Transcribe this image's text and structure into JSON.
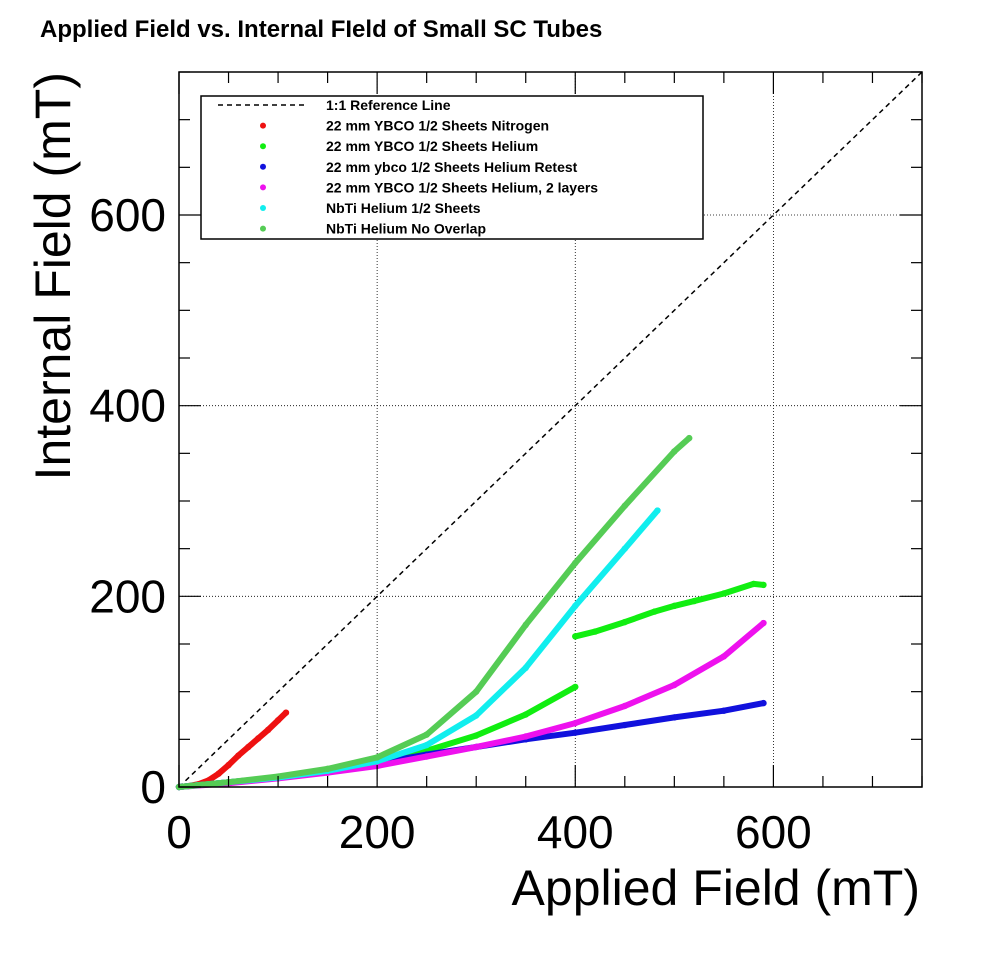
{
  "chart_data": {
    "type": "scatter",
    "title": "Applied Field vs. Internal FIeld of Small SC Tubes",
    "xlabel": "Applied Field (mT)",
    "ylabel": "Internal Field (mT)",
    "xlim": [
      0,
      750
    ],
    "ylim": [
      0,
      750
    ],
    "xticks": [
      0,
      200,
      400,
      600
    ],
    "yticks": [
      0,
      200,
      400,
      600
    ],
    "grid": "dotted at major ticks",
    "legend_position": "top-left",
    "reference_line": {
      "name": "1:1 Reference Line",
      "x": [
        0,
        750
      ],
      "y": [
        0,
        750
      ],
      "style": "dashed",
      "color": "#000000"
    },
    "series": [
      {
        "name": "22 mm YBCO 1/2 Sheets Nitrogen",
        "color": "#ee1111",
        "x": [
          0,
          10,
          20,
          30,
          40,
          50,
          60,
          70,
          80,
          90,
          100,
          108
        ],
        "y": [
          0,
          1,
          3,
          7,
          14,
          23,
          33,
          42,
          51,
          60,
          70,
          78
        ]
      },
      {
        "name": "22 mm YBCO 1/2 Sheets Helium",
        "color": "#11ee11",
        "segments": [
          {
            "x": [
              0,
              50,
              100,
              150,
              200,
              250,
              300,
              350,
              400
            ],
            "y": [
              0,
              5,
              10,
              17,
              26,
              38,
              54,
              76,
              105
            ]
          },
          {
            "x": [
              400,
              420,
              450,
              480,
              500,
              520,
              550,
              580,
              590
            ],
            "y": [
              158,
              163,
              173,
              184,
              190,
              195,
              203,
              213,
              212
            ]
          }
        ]
      },
      {
        "name": "22 mm ybco 1/2 Sheets Helium Retest",
        "color": "#1111dd",
        "x": [
          0,
          50,
          100,
          150,
          200,
          250,
          300,
          350,
          400,
          450,
          500,
          550,
          590
        ],
        "y": [
          0,
          5,
          10,
          17,
          25,
          34,
          42,
          50,
          57,
          65,
          73,
          80,
          88
        ]
      },
      {
        "name": "22 mm YBCO 1/2 Sheets Helium, 2 layers",
        "color": "#ee11ee",
        "x": [
          0,
          50,
          100,
          150,
          200,
          250,
          300,
          350,
          400,
          450,
          500,
          550,
          590
        ],
        "y": [
          0,
          4,
          9,
          15,
          22,
          32,
          42,
          53,
          67,
          85,
          107,
          137,
          172
        ]
      },
      {
        "name": "NbTi Helium 1/2 Sheets",
        "color": "#11eeee",
        "x": [
          0,
          50,
          100,
          150,
          200,
          250,
          300,
          350,
          400,
          450,
          483
        ],
        "y": [
          0,
          5,
          10,
          17,
          27,
          44,
          75,
          125,
          190,
          250,
          290
        ]
      },
      {
        "name": "NbTi Helium No Overlap",
        "color": "#55cc55",
        "x": [
          0,
          50,
          100,
          150,
          200,
          250,
          300,
          350,
          400,
          450,
          500,
          515
        ],
        "y": [
          0,
          5,
          11,
          19,
          31,
          55,
          100,
          170,
          235,
          295,
          352,
          366
        ]
      }
    ]
  }
}
